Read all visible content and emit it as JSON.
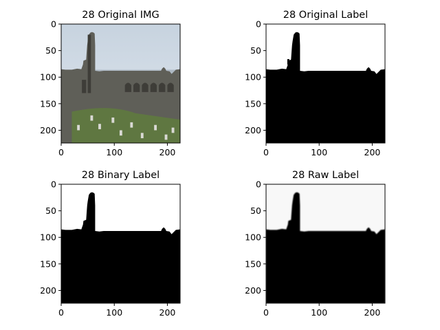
{
  "figure": {
    "panels": [
      {
        "title": "28 Original IMG",
        "kind": "photo",
        "x_ticks": [
          "0",
          "100",
          "200"
        ],
        "y_ticks": [
          "0",
          "50",
          "100",
          "150",
          "200"
        ],
        "colors": {
          "sky": "#dfe6ee",
          "sea": "#aeb9c4",
          "stone": "#5f5f58",
          "stone_dark": "#3e3d38",
          "grass": "#5f7a3f",
          "grave": "#d9d9d4"
        }
      },
      {
        "title": "28 Original Label",
        "kind": "mask-sharp",
        "x_ticks": [
          "0",
          "100",
          "200"
        ],
        "y_ticks": [
          "0",
          "50",
          "100",
          "150",
          "200"
        ],
        "colors": {
          "background": "#ffffff",
          "mask": "#000000"
        }
      },
      {
        "title": "28 Binary Label",
        "kind": "mask",
        "x_ticks": [
          "0",
          "100",
          "200"
        ],
        "y_ticks": [
          "0",
          "50",
          "100",
          "150",
          "200"
        ],
        "colors": {
          "background": "#ffffff",
          "mask": "#000000"
        }
      },
      {
        "title": "28 Raw Label",
        "kind": "mask-soft",
        "x_ticks": [
          "0",
          "100",
          "200"
        ],
        "y_ticks": [
          "0",
          "50",
          "100",
          "150",
          "200"
        ],
        "colors": {
          "background": "#f8f8f8",
          "mask": "#000000"
        }
      }
    ]
  }
}
